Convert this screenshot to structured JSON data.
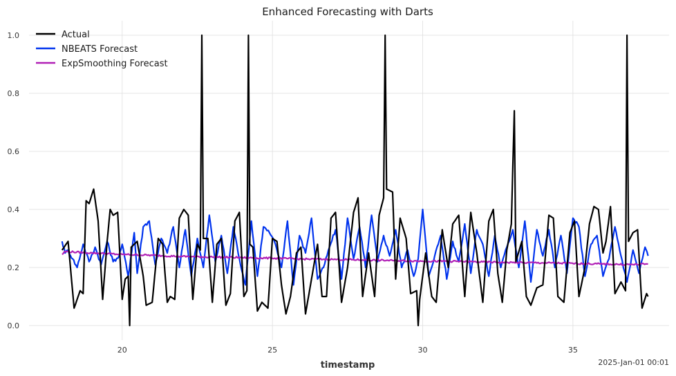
{
  "chart_data": {
    "type": "line",
    "title": "Enhanced Forecasting with Darts",
    "xlabel": "timestamp",
    "ylabel": "",
    "x_offset_label": "2025-Jan-01 00:01",
    "xlim": [
      16.9,
      38.2
    ],
    "ylim": [
      -0.05,
      1.05
    ],
    "xticks": [
      20,
      25,
      30,
      35
    ],
    "yticks": [
      0.0,
      0.2,
      0.4,
      0.6,
      0.8,
      1.0
    ],
    "x_start": 18.0,
    "x_end": 37.5,
    "grid": true,
    "legend_position": "top-left",
    "series": [
      {
        "name": "Actual",
        "color": "#000000",
        "keypoints": [
          [
            18.0,
            0.26
          ],
          [
            18.2,
            0.29
          ],
          [
            18.4,
            0.06
          ],
          [
            18.6,
            0.12
          ],
          [
            18.7,
            0.11
          ],
          [
            18.8,
            0.43
          ],
          [
            18.9,
            0.42
          ],
          [
            19.05,
            0.47
          ],
          [
            19.2,
            0.36
          ],
          [
            19.35,
            0.09
          ],
          [
            19.5,
            0.29
          ],
          [
            19.6,
            0.4
          ],
          [
            19.7,
            0.38
          ],
          [
            19.85,
            0.39
          ],
          [
            20.0,
            0.09
          ],
          [
            20.1,
            0.16
          ],
          [
            20.2,
            0.17
          ],
          [
            20.25,
            0.0
          ],
          [
            20.3,
            0.27
          ],
          [
            20.5,
            0.29
          ],
          [
            20.7,
            0.17
          ],
          [
            20.8,
            0.07
          ],
          [
            21.0,
            0.08
          ],
          [
            21.2,
            0.3
          ],
          [
            21.35,
            0.28
          ],
          [
            21.5,
            0.08
          ],
          [
            21.6,
            0.1
          ],
          [
            21.75,
            0.09
          ],
          [
            21.9,
            0.37
          ],
          [
            22.05,
            0.4
          ],
          [
            22.2,
            0.38
          ],
          [
            22.35,
            0.09
          ],
          [
            22.5,
            0.28
          ],
          [
            22.6,
            0.26
          ],
          [
            22.65,
            1.0
          ],
          [
            22.7,
            0.3
          ],
          [
            22.85,
            0.3
          ],
          [
            23.0,
            0.08
          ],
          [
            23.15,
            0.28
          ],
          [
            23.3,
            0.3
          ],
          [
            23.45,
            0.07
          ],
          [
            23.6,
            0.11
          ],
          [
            23.75,
            0.36
          ],
          [
            23.9,
            0.39
          ],
          [
            24.05,
            0.1
          ],
          [
            24.15,
            0.12
          ],
          [
            24.2,
            1.0
          ],
          [
            24.25,
            0.28
          ],
          [
            24.35,
            0.27
          ],
          [
            24.5,
            0.05
          ],
          [
            24.65,
            0.08
          ],
          [
            24.85,
            0.06
          ],
          [
            25.0,
            0.3
          ],
          [
            25.15,
            0.29
          ],
          [
            25.3,
            0.14
          ],
          [
            25.45,
            0.04
          ],
          [
            25.6,
            0.1
          ],
          [
            25.8,
            0.25
          ],
          [
            25.95,
            0.27
          ],
          [
            26.1,
            0.04
          ],
          [
            26.25,
            0.13
          ],
          [
            26.5,
            0.28
          ],
          [
            26.65,
            0.1
          ],
          [
            26.8,
            0.1
          ],
          [
            26.95,
            0.37
          ],
          [
            27.1,
            0.39
          ],
          [
            27.3,
            0.08
          ],
          [
            27.5,
            0.2
          ],
          [
            27.7,
            0.39
          ],
          [
            27.85,
            0.44
          ],
          [
            28.0,
            0.1
          ],
          [
            28.2,
            0.25
          ],
          [
            28.4,
            0.1
          ],
          [
            28.55,
            0.38
          ],
          [
            28.7,
            0.44
          ],
          [
            28.75,
            1.0
          ],
          [
            28.8,
            0.47
          ],
          [
            29.0,
            0.46
          ],
          [
            29.1,
            0.16
          ],
          [
            29.25,
            0.37
          ],
          [
            29.45,
            0.3
          ],
          [
            29.6,
            0.11
          ],
          [
            29.8,
            0.12
          ],
          [
            29.85,
            0.0
          ],
          [
            29.9,
            0.09
          ],
          [
            30.1,
            0.25
          ],
          [
            30.3,
            0.1
          ],
          [
            30.45,
            0.08
          ],
          [
            30.65,
            0.33
          ],
          [
            30.85,
            0.2
          ],
          [
            31.0,
            0.35
          ],
          [
            31.2,
            0.38
          ],
          [
            31.4,
            0.1
          ],
          [
            31.6,
            0.39
          ],
          [
            31.8,
            0.25
          ],
          [
            32.0,
            0.08
          ],
          [
            32.2,
            0.36
          ],
          [
            32.35,
            0.4
          ],
          [
            32.5,
            0.18
          ],
          [
            32.65,
            0.08
          ],
          [
            32.8,
            0.26
          ],
          [
            32.95,
            0.35
          ],
          [
            33.05,
            0.74
          ],
          [
            33.1,
            0.22
          ],
          [
            33.3,
            0.29
          ],
          [
            33.45,
            0.1
          ],
          [
            33.6,
            0.07
          ],
          [
            33.8,
            0.13
          ],
          [
            34.0,
            0.14
          ],
          [
            34.2,
            0.38
          ],
          [
            34.35,
            0.37
          ],
          [
            34.5,
            0.1
          ],
          [
            34.7,
            0.08
          ],
          [
            34.9,
            0.32
          ],
          [
            35.05,
            0.36
          ],
          [
            35.2,
            0.1
          ],
          [
            35.4,
            0.2
          ],
          [
            35.55,
            0.35
          ],
          [
            35.7,
            0.41
          ],
          [
            35.85,
            0.4
          ],
          [
            36.0,
            0.25
          ],
          [
            36.1,
            0.29
          ],
          [
            36.25,
            0.41
          ],
          [
            36.4,
            0.11
          ],
          [
            36.6,
            0.15
          ],
          [
            36.75,
            0.12
          ],
          [
            36.8,
            1.0
          ],
          [
            36.85,
            0.29
          ],
          [
            37.0,
            0.32
          ],
          [
            37.15,
            0.33
          ],
          [
            37.3,
            0.06
          ],
          [
            37.45,
            0.11
          ],
          [
            37.5,
            0.1
          ]
        ]
      },
      {
        "name": "NBEATS Forecast",
        "color": "#0033ee",
        "keypoints": [
          [
            18.0,
            0.29
          ],
          [
            18.1,
            0.25
          ],
          [
            18.2,
            0.26
          ],
          [
            18.35,
            0.23
          ],
          [
            18.5,
            0.2
          ],
          [
            18.7,
            0.28
          ],
          [
            18.9,
            0.22
          ],
          [
            19.1,
            0.27
          ],
          [
            19.3,
            0.21
          ],
          [
            19.5,
            0.29
          ],
          [
            19.7,
            0.22
          ],
          [
            19.9,
            0.24
          ],
          [
            20.0,
            0.28
          ],
          [
            20.2,
            0.17
          ],
          [
            20.4,
            0.32
          ],
          [
            20.5,
            0.18
          ],
          [
            20.7,
            0.34
          ],
          [
            20.9,
            0.36
          ],
          [
            21.1,
            0.21
          ],
          [
            21.3,
            0.3
          ],
          [
            21.5,
            0.25
          ],
          [
            21.7,
            0.34
          ],
          [
            21.9,
            0.2
          ],
          [
            22.1,
            0.33
          ],
          [
            22.3,
            0.17
          ],
          [
            22.5,
            0.3
          ],
          [
            22.7,
            0.2
          ],
          [
            22.9,
            0.38
          ],
          [
            23.1,
            0.22
          ],
          [
            23.3,
            0.31
          ],
          [
            23.5,
            0.18
          ],
          [
            23.7,
            0.34
          ],
          [
            23.9,
            0.23
          ],
          [
            24.1,
            0.14
          ],
          [
            24.3,
            0.36
          ],
          [
            24.5,
            0.17
          ],
          [
            24.7,
            0.34
          ],
          [
            24.9,
            0.32
          ],
          [
            25.1,
            0.28
          ],
          [
            25.3,
            0.2
          ],
          [
            25.5,
            0.36
          ],
          [
            25.7,
            0.14
          ],
          [
            25.9,
            0.31
          ],
          [
            26.1,
            0.25
          ],
          [
            26.3,
            0.37
          ],
          [
            26.5,
            0.16
          ],
          [
            26.7,
            0.2
          ],
          [
            26.9,
            0.27
          ],
          [
            27.1,
            0.33
          ],
          [
            27.3,
            0.16
          ],
          [
            27.5,
            0.37
          ],
          [
            27.7,
            0.23
          ],
          [
            27.9,
            0.34
          ],
          [
            28.1,
            0.2
          ],
          [
            28.3,
            0.38
          ],
          [
            28.5,
            0.22
          ],
          [
            28.7,
            0.31
          ],
          [
            28.9,
            0.24
          ],
          [
            29.1,
            0.33
          ],
          [
            29.3,
            0.2
          ],
          [
            29.5,
            0.26
          ],
          [
            29.7,
            0.17
          ],
          [
            29.85,
            0.23
          ],
          [
            30.0,
            0.4
          ],
          [
            30.2,
            0.17
          ],
          [
            30.4,
            0.24
          ],
          [
            30.6,
            0.31
          ],
          [
            30.8,
            0.16
          ],
          [
            31.0,
            0.29
          ],
          [
            31.2,
            0.22
          ],
          [
            31.4,
            0.35
          ],
          [
            31.6,
            0.18
          ],
          [
            31.8,
            0.33
          ],
          [
            32.0,
            0.28
          ],
          [
            32.2,
            0.17
          ],
          [
            32.4,
            0.31
          ],
          [
            32.6,
            0.2
          ],
          [
            32.8,
            0.27
          ],
          [
            33.0,
            0.33
          ],
          [
            33.2,
            0.2
          ],
          [
            33.4,
            0.36
          ],
          [
            33.6,
            0.15
          ],
          [
            33.8,
            0.33
          ],
          [
            34.0,
            0.24
          ],
          [
            34.2,
            0.33
          ],
          [
            34.4,
            0.2
          ],
          [
            34.6,
            0.31
          ],
          [
            34.8,
            0.18
          ],
          [
            35.0,
            0.37
          ],
          [
            35.2,
            0.34
          ],
          [
            35.4,
            0.17
          ],
          [
            35.6,
            0.28
          ],
          [
            35.8,
            0.31
          ],
          [
            36.0,
            0.17
          ],
          [
            36.2,
            0.23
          ],
          [
            36.4,
            0.34
          ],
          [
            36.6,
            0.24
          ],
          [
            36.8,
            0.15
          ],
          [
            37.0,
            0.26
          ],
          [
            37.2,
            0.18
          ],
          [
            37.4,
            0.27
          ],
          [
            37.5,
            0.24
          ]
        ]
      },
      {
        "name": "ExpSmoothing Forecast",
        "color": "#b01fb5",
        "keypoints": [
          [
            18.0,
            0.245
          ],
          [
            18.1,
            0.255
          ],
          [
            19.0,
            0.25
          ],
          [
            20.0,
            0.245
          ],
          [
            21.0,
            0.242
          ],
          [
            22.0,
            0.238
          ],
          [
            23.0,
            0.236
          ],
          [
            24.0,
            0.234
          ],
          [
            25.0,
            0.232
          ],
          [
            26.0,
            0.229
          ],
          [
            27.0,
            0.228
          ],
          [
            28.0,
            0.226
          ],
          [
            29.0,
            0.224
          ],
          [
            30.0,
            0.222
          ],
          [
            31.0,
            0.221
          ],
          [
            32.0,
            0.219
          ],
          [
            33.0,
            0.217
          ],
          [
            34.0,
            0.216
          ],
          [
            35.0,
            0.214
          ],
          [
            36.0,
            0.212
          ],
          [
            37.0,
            0.21
          ],
          [
            37.5,
            0.212
          ]
        ]
      }
    ]
  }
}
